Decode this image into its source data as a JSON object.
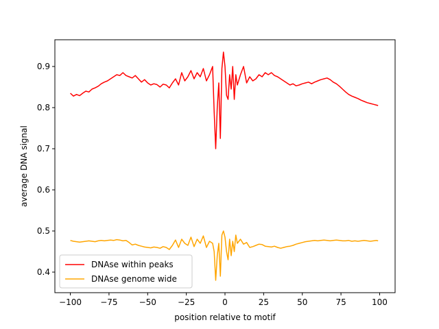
{
  "chart_data": {
    "type": "line",
    "title": "",
    "xlabel": "position relative to motif",
    "ylabel": "average DNA signal",
    "xlim": [
      -110,
      110
    ],
    "ylim": [
      0.35,
      0.965
    ],
    "xticks": [
      -100,
      -75,
      -50,
      -25,
      0,
      25,
      50,
      75,
      100
    ],
    "xtick_labels": [
      "−100",
      "−75",
      "−50",
      "−25",
      "0",
      "25",
      "50",
      "75",
      "100"
    ],
    "yticks": [
      0.4,
      0.5,
      0.6,
      0.7,
      0.8,
      0.9
    ],
    "ytick_labels": [
      "0.4",
      "0.5",
      "0.6",
      "0.7",
      "0.8",
      "0.9"
    ],
    "grid": false,
    "legend_position": "lower-left",
    "series": [
      {
        "name": "DNAse within peaks",
        "color": "#ff0000",
        "x": [
          -100,
          -98,
          -96,
          -94,
          -92,
          -90,
          -88,
          -86,
          -84,
          -82,
          -80,
          -78,
          -76,
          -74,
          -72,
          -70,
          -68,
          -66,
          -64,
          -62,
          -60,
          -58,
          -56,
          -54,
          -52,
          -50,
          -48,
          -46,
          -44,
          -42,
          -40,
          -38,
          -36,
          -34,
          -32,
          -30,
          -28,
          -26,
          -24,
          -22,
          -20,
          -18,
          -16,
          -14,
          -12,
          -10,
          -8,
          -7,
          -6,
          -5,
          -4,
          -3,
          -2,
          -1,
          0,
          1,
          2,
          3,
          4,
          5,
          6,
          7,
          8,
          10,
          12,
          14,
          16,
          18,
          20,
          22,
          24,
          26,
          28,
          30,
          32,
          34,
          36,
          38,
          40,
          42,
          44,
          46,
          48,
          50,
          52,
          54,
          56,
          58,
          60,
          62,
          64,
          66,
          68,
          70,
          72,
          74,
          76,
          78,
          80,
          82,
          84,
          86,
          88,
          90,
          92,
          94,
          96,
          98,
          99
        ],
        "y": [
          0.835,
          0.828,
          0.832,
          0.829,
          0.835,
          0.84,
          0.838,
          0.845,
          0.848,
          0.852,
          0.858,
          0.862,
          0.865,
          0.87,
          0.875,
          0.88,
          0.878,
          0.885,
          0.878,
          0.875,
          0.872,
          0.878,
          0.87,
          0.862,
          0.868,
          0.86,
          0.855,
          0.858,
          0.856,
          0.85,
          0.857,
          0.855,
          0.848,
          0.86,
          0.87,
          0.855,
          0.885,
          0.865,
          0.875,
          0.89,
          0.87,
          0.885,
          0.875,
          0.895,
          0.865,
          0.88,
          0.9,
          0.79,
          0.7,
          0.8,
          0.86,
          0.725,
          0.895,
          0.935,
          0.9,
          0.83,
          0.82,
          0.88,
          0.845,
          0.9,
          0.82,
          0.88,
          0.855,
          0.88,
          0.9,
          0.86,
          0.875,
          0.865,
          0.87,
          0.88,
          0.875,
          0.885,
          0.88,
          0.885,
          0.878,
          0.875,
          0.87,
          0.865,
          0.86,
          0.855,
          0.858,
          0.853,
          0.855,
          0.858,
          0.86,
          0.862,
          0.858,
          0.862,
          0.865,
          0.868,
          0.87,
          0.872,
          0.868,
          0.862,
          0.858,
          0.852,
          0.845,
          0.838,
          0.832,
          0.828,
          0.825,
          0.822,
          0.818,
          0.815,
          0.812,
          0.81,
          0.808,
          0.806,
          0.805
        ]
      },
      {
        "name": "DNAse genome wide",
        "color": "#ffa500",
        "x": [
          -100,
          -98,
          -96,
          -94,
          -92,
          -90,
          -88,
          -86,
          -84,
          -82,
          -80,
          -78,
          -76,
          -74,
          -72,
          -70,
          -68,
          -66,
          -64,
          -62,
          -60,
          -58,
          -56,
          -54,
          -52,
          -50,
          -48,
          -46,
          -44,
          -42,
          -40,
          -38,
          -36,
          -34,
          -32,
          -30,
          -28,
          -26,
          -24,
          -22,
          -20,
          -18,
          -16,
          -14,
          -12,
          -10,
          -8,
          -7,
          -6,
          -5,
          -4,
          -3,
          -2,
          -1,
          0,
          1,
          2,
          3,
          4,
          5,
          6,
          7,
          8,
          10,
          12,
          14,
          16,
          18,
          20,
          22,
          24,
          26,
          28,
          30,
          32,
          34,
          36,
          38,
          40,
          42,
          44,
          46,
          48,
          50,
          52,
          54,
          56,
          58,
          60,
          62,
          64,
          66,
          68,
          70,
          72,
          74,
          76,
          78,
          80,
          82,
          84,
          86,
          88,
          90,
          92,
          94,
          96,
          98,
          99
        ],
        "y": [
          0.477,
          0.475,
          0.474,
          0.473,
          0.474,
          0.475,
          0.476,
          0.475,
          0.474,
          0.476,
          0.477,
          0.476,
          0.477,
          0.478,
          0.477,
          0.479,
          0.478,
          0.476,
          0.477,
          0.472,
          0.466,
          0.468,
          0.465,
          0.463,
          0.461,
          0.46,
          0.459,
          0.461,
          0.46,
          0.458,
          0.462,
          0.46,
          0.455,
          0.465,
          0.478,
          0.46,
          0.48,
          0.47,
          0.465,
          0.485,
          0.462,
          0.48,
          0.47,
          0.488,
          0.46,
          0.475,
          0.47,
          0.45,
          0.38,
          0.44,
          0.47,
          0.39,
          0.49,
          0.5,
          0.485,
          0.45,
          0.43,
          0.48,
          0.44,
          0.475,
          0.45,
          0.49,
          0.47,
          0.48,
          0.468,
          0.472,
          0.46,
          0.462,
          0.465,
          0.468,
          0.467,
          0.463,
          0.462,
          0.461,
          0.463,
          0.46,
          0.458,
          0.46,
          0.462,
          0.463,
          0.465,
          0.468,
          0.47,
          0.472,
          0.474,
          0.475,
          0.476,
          0.477,
          0.476,
          0.477,
          0.478,
          0.477,
          0.476,
          0.477,
          0.478,
          0.477,
          0.476,
          0.476,
          0.477,
          0.475,
          0.476,
          0.475,
          0.476,
          0.477,
          0.476,
          0.475,
          0.476,
          0.477,
          0.476
        ]
      }
    ]
  }
}
